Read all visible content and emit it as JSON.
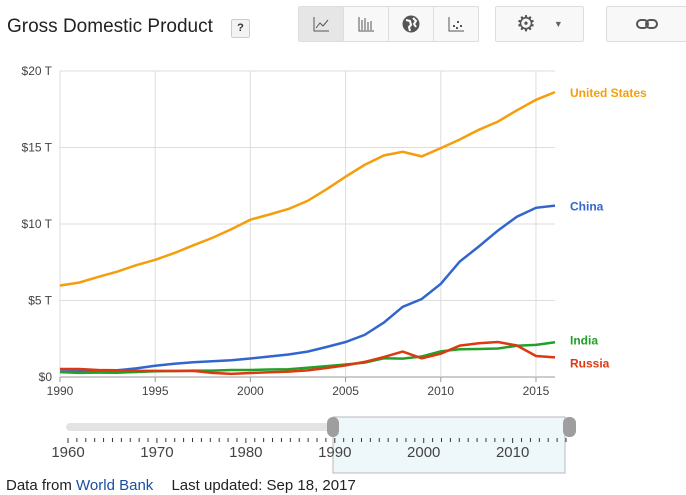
{
  "header": {
    "title": "Gross Domestic Product",
    "help": "?"
  },
  "toolbar": {
    "views": [
      "line-chart-icon",
      "bar-chart-icon",
      "map-icon",
      "scatter-icon"
    ],
    "selected": "line-chart-icon",
    "settings": "gear-icon",
    "link": "link-icon"
  },
  "chart_data": {
    "type": "line",
    "title": "Gross Domestic Product",
    "xlabel": "",
    "ylabel": "",
    "x": [
      1990,
      1991,
      1992,
      1993,
      1994,
      1995,
      1996,
      1997,
      1998,
      1999,
      2000,
      2001,
      2002,
      2003,
      2004,
      2005,
      2006,
      2007,
      2008,
      2009,
      2010,
      2011,
      2012,
      2013,
      2014,
      2015,
      2016
    ],
    "xlim": [
      1990,
      2016
    ],
    "ylim": [
      0,
      20
    ],
    "xticks": [
      "1990",
      "1995",
      "2000",
      "2005",
      "2010",
      "2015"
    ],
    "yticks": [
      "$0",
      "$5 T",
      "$10 T",
      "$15 T",
      "$20 T"
    ],
    "grid": true,
    "legend": "right end labels",
    "series": [
      {
        "name": "United States",
        "color": "#f59e0b",
        "values": [
          5.98,
          6.17,
          6.54,
          6.88,
          7.31,
          7.66,
          8.1,
          8.61,
          9.09,
          9.66,
          10.28,
          10.62,
          10.98,
          11.51,
          12.27,
          13.09,
          13.86,
          14.48,
          14.72,
          14.42,
          14.96,
          15.52,
          16.16,
          16.69,
          17.43,
          18.12,
          18.62
        ]
      },
      {
        "name": "China",
        "color": "#3366cc",
        "values": [
          0.36,
          0.38,
          0.43,
          0.44,
          0.56,
          0.73,
          0.86,
          0.96,
          1.03,
          1.09,
          1.21,
          1.34,
          1.47,
          1.66,
          1.96,
          2.29,
          2.75,
          3.55,
          4.59,
          5.1,
          6.09,
          7.55,
          8.53,
          9.57,
          10.48,
          11.06,
          11.2
        ]
      },
      {
        "name": "India",
        "color": "#22a02a",
        "values": [
          0.32,
          0.27,
          0.29,
          0.28,
          0.33,
          0.37,
          0.39,
          0.42,
          0.42,
          0.46,
          0.46,
          0.49,
          0.51,
          0.61,
          0.71,
          0.82,
          0.94,
          1.22,
          1.2,
          1.34,
          1.68,
          1.82,
          1.83,
          1.86,
          2.04,
          2.1,
          2.27
        ]
      },
      {
        "name": "Russia",
        "color": "#dc3912",
        "values": [
          0.52,
          0.52,
          0.46,
          0.44,
          0.4,
          0.4,
          0.39,
          0.4,
          0.27,
          0.2,
          0.26,
          0.31,
          0.35,
          0.43,
          0.59,
          0.76,
          0.99,
          1.3,
          1.66,
          1.22,
          1.52,
          2.05,
          2.21,
          2.29,
          2.06,
          1.37,
          1.28
        ]
      }
    ]
  },
  "timeline": {
    "ticks": [
      "1960",
      "1970",
      "1980",
      "1990",
      "2000",
      "2010"
    ],
    "range": [
      1960,
      2016
    ],
    "selected": [
      1990,
      2016
    ]
  },
  "footer": {
    "prefix": "Data from",
    "source": "World Bank",
    "updated": "Last updated: Sep 18, 2017"
  }
}
